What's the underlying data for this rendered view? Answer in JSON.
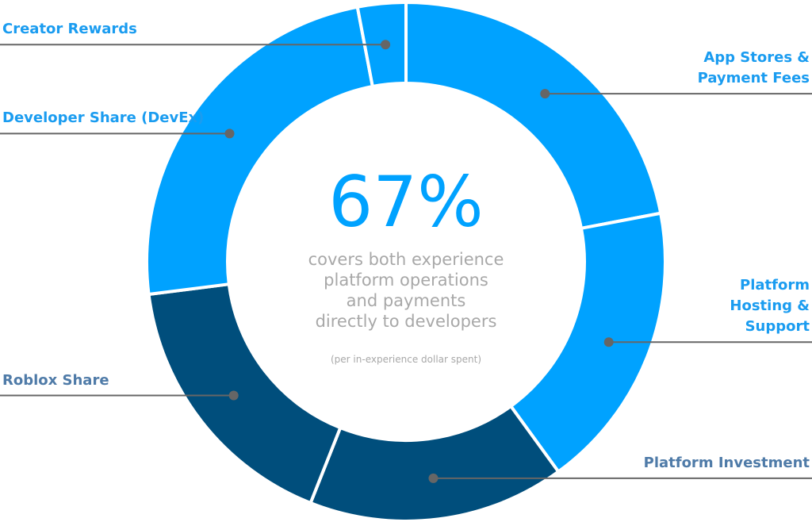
{
  "chart_data": {
    "type": "donut",
    "categories": [
      "App Stores &\nPayment Fees",
      "Platform\nHosting &\nSupport",
      "Platform Investment",
      "Roblox Share",
      "Developer Share (DevEx)",
      "Creator Rewards"
    ],
    "values": [
      22,
      18,
      16,
      17,
      24,
      3
    ],
    "colors": [
      "#00a2ff",
      "#00a2ff",
      "#004e7c",
      "#004e7c",
      "#00a2ff",
      "#00a2ff"
    ],
    "label_colors": [
      "#1a9cf0",
      "#1a9cf0",
      "#4f7ba8",
      "#4f7ba8",
      "#1a9cf0",
      "#1a9cf0"
    ],
    "center_text": "67%",
    "center_caption": "covers both experience\nplatform operations\nand payments\ndirectly to developers",
    "center_note": "(per in-experience dollar spent)"
  }
}
